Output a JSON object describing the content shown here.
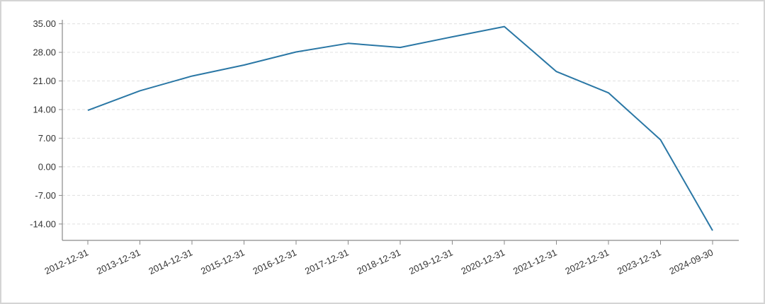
{
  "chart_data": {
    "type": "line",
    "title": "",
    "xlabel": "",
    "ylabel": "",
    "categories": [
      "2012-12-31",
      "2013-12-31",
      "2014-12-31",
      "2015-12-31",
      "2016-12-31",
      "2017-12-31",
      "2018-12-31",
      "2019-12-31",
      "2020-12-31",
      "2021-12-31",
      "2022-12-31",
      "2023-12-31",
      "2024-09-30"
    ],
    "series": [
      {
        "values": [
          13.8,
          18.6,
          22.2,
          24.9,
          28.1,
          30.2,
          29.2,
          31.8,
          34.3,
          23.3,
          18.1,
          6.6,
          -15.6
        ]
      }
    ],
    "ylim": [
      -18,
      37
    ],
    "yticks": [
      -14,
      -7,
      0,
      7,
      14,
      21,
      28,
      35
    ],
    "ytick_labels": [
      "-14.00",
      "-7.00",
      "0.00",
      "7.00",
      "14.00",
      "21.00",
      "28.00",
      "35.00"
    ],
    "grid": true,
    "legend": "none",
    "colors": {
      "line": "#2a77a5",
      "grid": "#e0e0e0",
      "axis": "#8a8a8a"
    }
  }
}
